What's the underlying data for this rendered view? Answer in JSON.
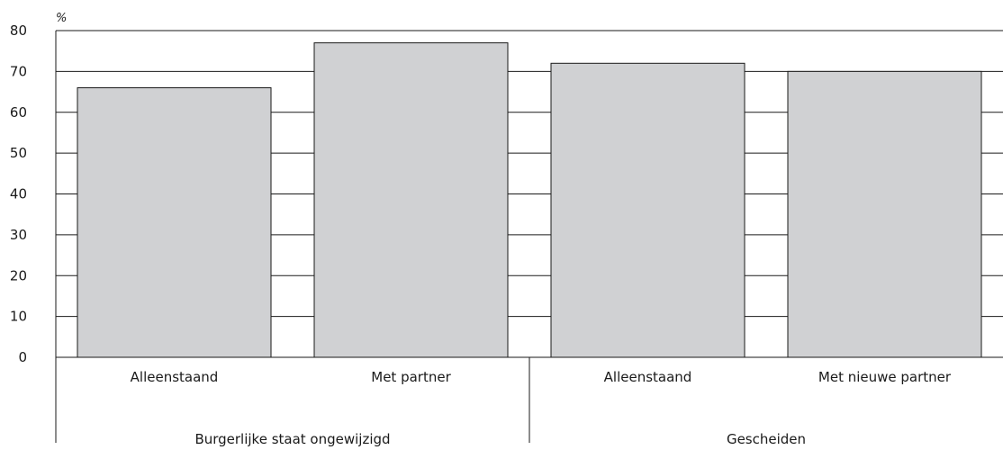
{
  "chart_data": {
    "type": "bar",
    "ylabel": "%",
    "ylim": [
      0,
      80
    ],
    "yticks": [
      0,
      10,
      20,
      30,
      40,
      50,
      60,
      70,
      80
    ],
    "categories": [
      "Alleenstaand",
      "Met partner",
      "Alleenstaand",
      "Met nieuwe partner"
    ],
    "groups": [
      {
        "label": "Burgerlijke staat ongewijzigd",
        "categories": [
          "Alleenstaand",
          "Met partner"
        ]
      },
      {
        "label": "Gescheiden",
        "categories": [
          "Alleenstaand",
          "Met nieuwe partner"
        ]
      }
    ],
    "values": [
      66,
      77,
      72,
      70
    ],
    "grid": true,
    "colors": {
      "bar": "#d0d1d3",
      "bar_stroke": "#1a1a1a",
      "grid": "#1a1a1a",
      "axis": "#1a1a1a"
    }
  }
}
